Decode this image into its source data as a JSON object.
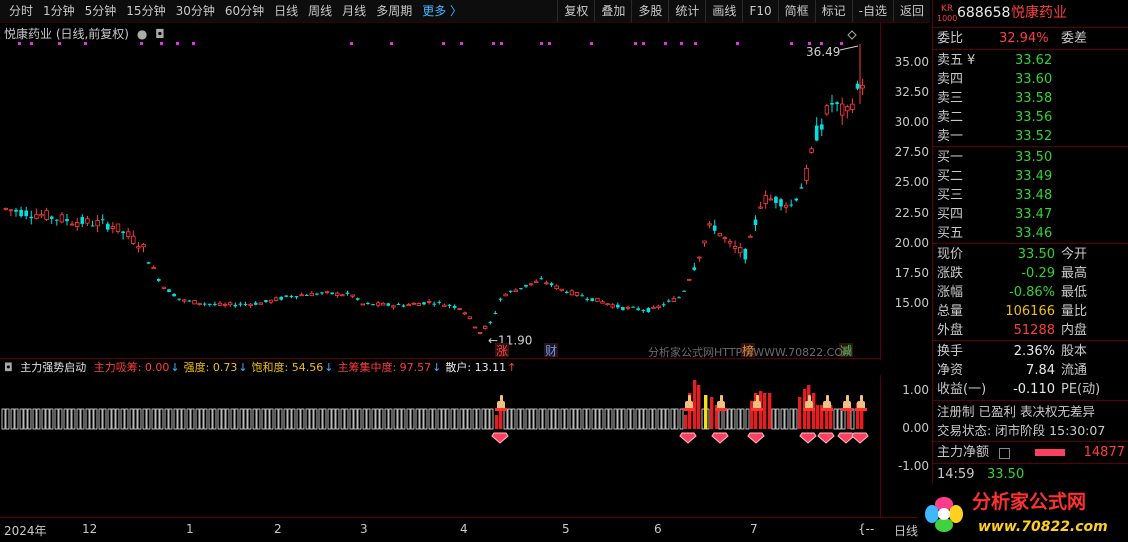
{
  "toolbar": {
    "periods": [
      "分时",
      "1分钟",
      "5分钟",
      "15分钟",
      "30分钟",
      "60分钟",
      "日线",
      "周线",
      "月线",
      "多周期"
    ],
    "more": "更多 〉",
    "tools": [
      "复权",
      "叠加",
      "多股",
      "统计",
      "画线",
      "F10",
      "简框",
      "标记",
      "-自选",
      "返回"
    ]
  },
  "chart": {
    "title": "悦康药业 (日线,前复权)",
    "high_label": "36.49",
    "low_label": "11.90",
    "y_ticks": [
      "35.00",
      "32.50",
      "30.00",
      "27.50",
      "25.00",
      "22.50",
      "20.00",
      "17.50",
      "15.00"
    ],
    "markers": [
      {
        "text": "涨",
        "color": "#ff4040"
      },
      {
        "text": "财",
        "color": "#4fa0ff"
      },
      {
        "text": "榜",
        "color": "#e89020"
      },
      {
        "text": "减",
        "color": "#30d030"
      }
    ],
    "watermark": "分析家公式网HTTP://WWW.70822.COM"
  },
  "indicator": {
    "name": "主力强势启动",
    "items": [
      {
        "label": "主力吸筹: 0.00",
        "color": "#ff3d3d",
        "arrow": "↓"
      },
      {
        "label": "强度: 0.73",
        "color": "#f0c000",
        "arrow": "↓"
      },
      {
        "label": "饱和度: 54.56",
        "color": "#f0c000",
        "arrow": "↓"
      },
      {
        "label": "主筹集中度: 97.57",
        "color": "#ff3d3d",
        "arrow": "↓"
      },
      {
        "label": "散户: 13.11",
        "color": "#e8e8e8",
        "arrow": "↑"
      }
    ],
    "y_ticks": [
      "1.00",
      "0.00",
      "-1.00"
    ]
  },
  "date_axis": {
    "labels": [
      "2024年",
      "12",
      "1",
      "2",
      "3",
      "4",
      "5",
      "6",
      "7",
      "{--"
    ],
    "period": "日线"
  },
  "panel": {
    "code": "688658",
    "name": "悦康药业",
    "badge_top": "KR",
    "badge_bottom": "1000",
    "weibi_label": "委比",
    "weibi_value": "32.94%",
    "weicha_label": "委差",
    "asks": [
      {
        "label": "卖五",
        "price": "33.62",
        "mark": "¥"
      },
      {
        "label": "卖四",
        "price": "33.60",
        "mark": ""
      },
      {
        "label": "卖三",
        "price": "33.58",
        "mark": ""
      },
      {
        "label": "卖二",
        "price": "33.56",
        "mark": ""
      },
      {
        "label": "卖一",
        "price": "33.52",
        "mark": ""
      }
    ],
    "bids": [
      {
        "label": "买一",
        "price": "33.50"
      },
      {
        "label": "买二",
        "price": "33.49"
      },
      {
        "label": "买三",
        "price": "33.48"
      },
      {
        "label": "买四",
        "price": "33.47"
      },
      {
        "label": "买五",
        "price": "33.46"
      }
    ],
    "quotes": [
      {
        "l": "现价",
        "v": "33.50",
        "vc": "green",
        "r": "今开"
      },
      {
        "l": "涨跌",
        "v": "-0.29",
        "vc": "green",
        "r": "最高"
      },
      {
        "l": "涨幅",
        "v": "-0.86%",
        "vc": "green",
        "r": "最低"
      },
      {
        "l": "总量",
        "v": "106166",
        "vc": "yellow",
        "r": "量比"
      },
      {
        "l": "外盘",
        "v": "51288",
        "vc": "red",
        "r": "内盘"
      }
    ],
    "stats": [
      {
        "l": "换手",
        "v": "2.36%",
        "r": "股本"
      },
      {
        "l": "净资",
        "v": "7.84",
        "r": "流通"
      },
      {
        "l": "收益(一)",
        "v": "-0.110",
        "r": "PE(动)"
      }
    ],
    "reg": "注册制 已盈利 表决权无差异",
    "trade_status": "交易状态: 闭市阶段 15:30:07",
    "net_label": "主力净额",
    "net_value": "14877",
    "tick_time": "14:59",
    "tick_price": "33.50"
  },
  "logo": {
    "text": "分析家公式网",
    "url": "www.70822.com"
  },
  "colors": {
    "up": "#ff3d3d",
    "down": "#00e0e0",
    "accent": "#3fb8ff"
  }
}
